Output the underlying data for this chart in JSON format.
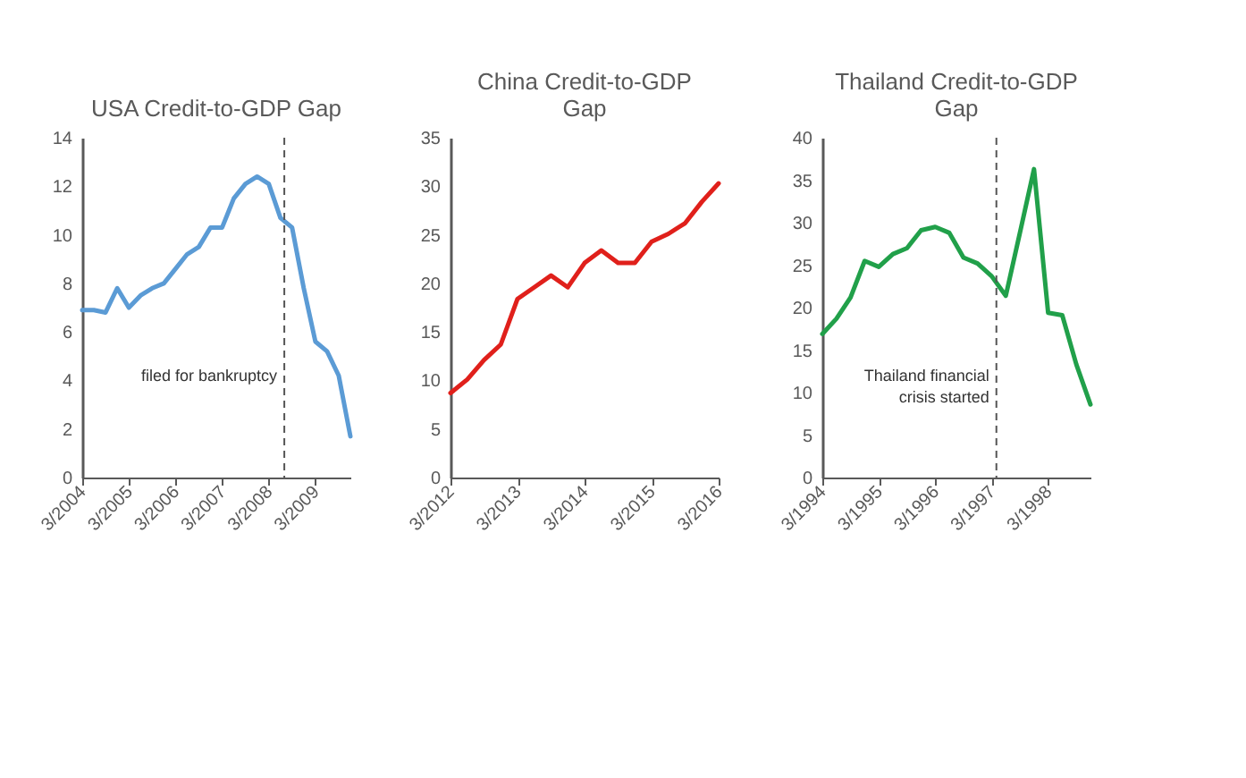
{
  "chart_data": [
    {
      "type": "line",
      "title": "USA Credit-to-GDP Gap",
      "x": [
        "2004-03",
        "2004-06",
        "2004-09",
        "2004-12",
        "2005-03",
        "2005-06",
        "2005-09",
        "2005-12",
        "2006-03",
        "2006-06",
        "2006-09",
        "2006-12",
        "2007-03",
        "2007-06",
        "2007-09",
        "2007-12",
        "2008-03",
        "2008-06",
        "2008-09",
        "2008-12",
        "2009-03",
        "2009-06",
        "2009-09",
        "2009-12"
      ],
      "series": [
        {
          "color": "#5b9bd5",
          "values": [
            6.9,
            6.9,
            6.8,
            7.8,
            7.0,
            7.5,
            7.8,
            8.0,
            8.6,
            9.2,
            9.5,
            10.3,
            10.3,
            11.5,
            12.1,
            12.4,
            12.1,
            10.7,
            10.3,
            7.8,
            5.6,
            5.2,
            4.2,
            1.7
          ]
        }
      ],
      "xlim": [
        "2004-03",
        "2009-12"
      ],
      "xticks": [
        {
          "value": "2004-03",
          "label": "3/2004"
        },
        {
          "value": "2005-03",
          "label": "3/2005"
        },
        {
          "value": "2006-03",
          "label": "3/2006"
        },
        {
          "value": "2007-03",
          "label": "3/2007"
        },
        {
          "value": "2008-03",
          "label": "3/2008"
        },
        {
          "value": "2009-03",
          "label": "3/2009"
        }
      ],
      "ylim": [
        0,
        14
      ],
      "yticks": [
        0,
        2,
        4,
        6,
        8,
        10,
        12,
        14
      ],
      "grid": false,
      "legend": false,
      "line_style": "solid",
      "marker": "none",
      "ref_lines": [
        {
          "axis": "x",
          "value": "2008-07",
          "label": "filed for bankruptcy",
          "line_style": "dashed",
          "color": "#555555"
        }
      ]
    },
    {
      "type": "line",
      "title": "China Credit-to-GDP Gap",
      "x": [
        "2012-03",
        "2012-06",
        "2012-09",
        "2012-12",
        "2013-03",
        "2013-06",
        "2013-09",
        "2013-12",
        "2014-03",
        "2014-06",
        "2014-09",
        "2014-12",
        "2015-03",
        "2015-06",
        "2015-09",
        "2015-12",
        "2016-03"
      ],
      "series": [
        {
          "color": "#e0201b",
          "values": [
            8.7,
            10.1,
            12.1,
            13.7,
            18.4,
            19.6,
            20.8,
            19.6,
            22.1,
            23.4,
            22.1,
            22.1,
            24.3,
            25.1,
            26.2,
            28.4,
            30.3
          ]
        }
      ],
      "xlim": [
        "2012-03",
        "2016-03"
      ],
      "xticks": [
        {
          "value": "2012-03",
          "label": "3/2012"
        },
        {
          "value": "2013-03",
          "label": "3/2013"
        },
        {
          "value": "2014-03",
          "label": "3/2014"
        },
        {
          "value": "2015-03",
          "label": "3/2015"
        },
        {
          "value": "2016-03",
          "label": "3/2016"
        }
      ],
      "ylim": [
        0,
        35
      ],
      "yticks": [
        0,
        5,
        10,
        15,
        20,
        25,
        30,
        35
      ],
      "grid": false,
      "legend": false,
      "line_style": "solid",
      "marker": "none"
    },
    {
      "type": "line",
      "title": "Thailand Credit-to-GDP Gap",
      "x": [
        "1994-03",
        "1994-06",
        "1994-09",
        "1994-12",
        "1995-03",
        "1995-06",
        "1995-09",
        "1995-12",
        "1996-03",
        "1996-06",
        "1996-09",
        "1996-12",
        "1997-03",
        "1997-06",
        "1997-09",
        "1997-12",
        "1998-03",
        "1998-06",
        "1998-09",
        "1998-12"
      ],
      "series": [
        {
          "color": "#21a04a",
          "values": [
            16.9,
            18.7,
            21.2,
            25.5,
            24.8,
            26.3,
            27.0,
            29.1,
            29.5,
            28.8,
            25.9,
            25.2,
            23.7,
            21.4,
            28.8,
            36.3,
            19.4,
            19.1,
            13.3,
            8.6
          ]
        }
      ],
      "xlim": [
        "1994-03",
        "1998-12"
      ],
      "xticks": [
        {
          "value": "1994-03",
          "label": "3/1994"
        },
        {
          "value": "1995-03",
          "label": "3/1995"
        },
        {
          "value": "1996-03",
          "label": "3/1996"
        },
        {
          "value": "1997-03",
          "label": "3/1997"
        },
        {
          "value": "1998-03",
          "label": "3/1998"
        }
      ],
      "ylim": [
        0,
        40
      ],
      "yticks": [
        0,
        5,
        10,
        15,
        20,
        25,
        30,
        35,
        40
      ],
      "grid": false,
      "legend": false,
      "line_style": "solid",
      "marker": "none",
      "ref_lines": [
        {
          "axis": "x",
          "value": "1997-04",
          "label": "Thailand financial crisis started",
          "line_style": "dashed",
          "color": "#555555"
        }
      ]
    }
  ]
}
